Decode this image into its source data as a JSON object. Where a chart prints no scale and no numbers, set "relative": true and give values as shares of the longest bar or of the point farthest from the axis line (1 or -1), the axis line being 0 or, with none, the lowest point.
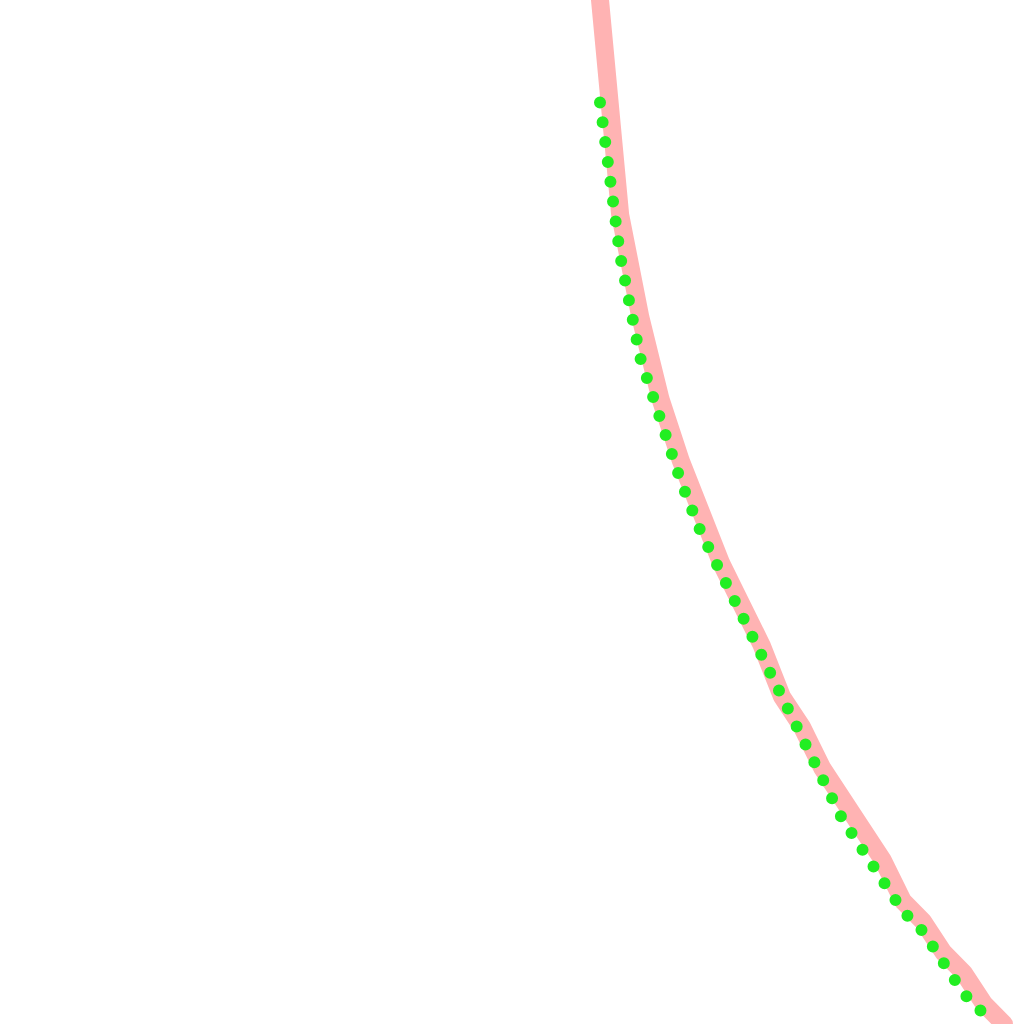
{
  "chart_data": {
    "type": "line",
    "relative": true,
    "categories": [
      null,
      null,
      null,
      null,
      null,
      null,
      null,
      null,
      null,
      null,
      null,
      null,
      null,
      null,
      null,
      null,
      null,
      null,
      null,
      null,
      null
    ],
    "marker": "none",
    "series": [
      {
        "color": "#ffb3b3",
        "line_style": "solid",
        "values": [
          1,
          0.79,
          0.69,
          0.61,
          0.55,
          0.5,
          0.45,
          0.41,
          0.37,
          0.32,
          0.29,
          0.25,
          0.22,
          0.19,
          0.16,
          0.12,
          0.1,
          0.07,
          0.05,
          0.02,
          0
        ]
      },
      {
        "color": "#22ee22",
        "line_style": "dotted",
        "values": [
          0.9,
          0.75,
          0.65,
          0.59,
          0.53,
          0.48,
          0.44,
          0.4,
          0.36,
          0.32,
          0.28,
          0.24,
          0.2,
          0.17,
          0.14,
          0.11,
          0.09,
          0.06,
          0.03,
          0.01,
          null
        ]
      }
    ]
  }
}
